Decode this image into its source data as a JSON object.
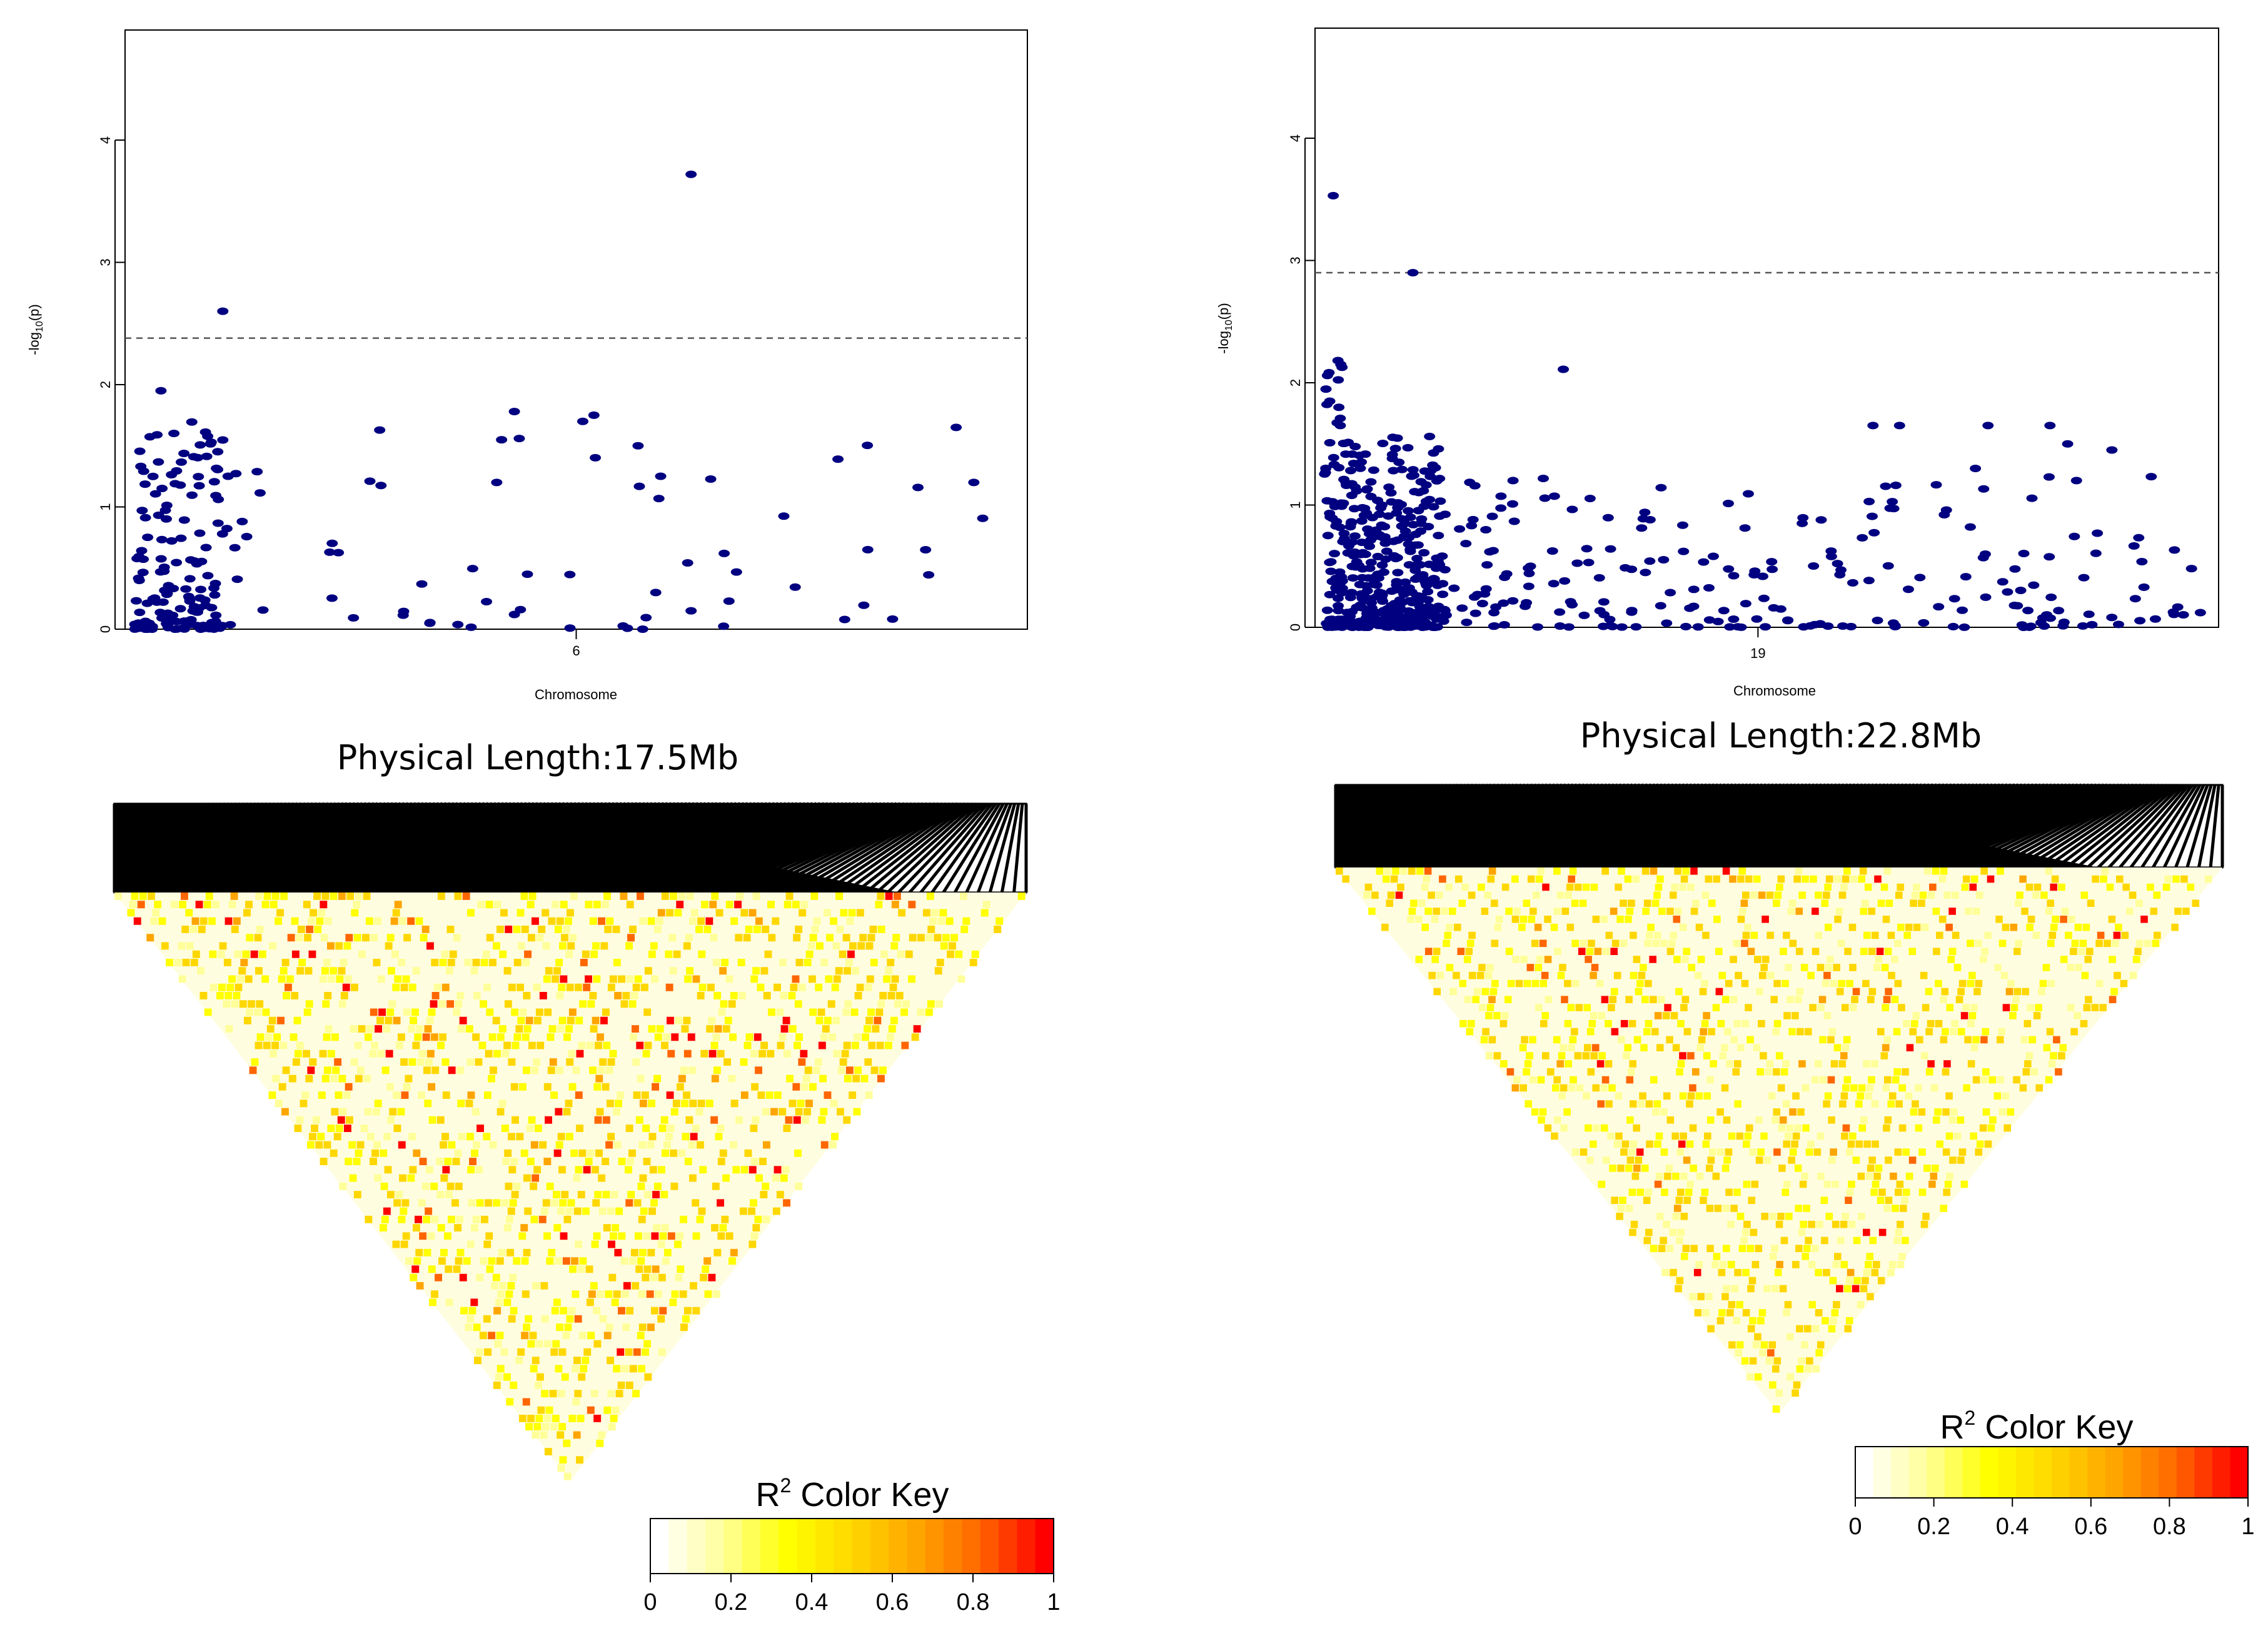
{
  "figure": {
    "background": "#ffffff",
    "point_color": "#000080",
    "heat_palette": [
      "#ffffff",
      "#ffff99",
      "#ffff00",
      "#ffd700",
      "#ffa500",
      "#ff6600",
      "#ff0000"
    ]
  },
  "chart_data": [
    {
      "type": "scatter",
      "id": "manhattan-chr6",
      "xlabel": "Chromosome",
      "ylabel": "-log10(p)",
      "ylabel_main": "-log",
      "ylabel_sub": "10",
      "ylabel_tail": "(p)",
      "x_tick_label": "6",
      "x_tick_pos": 0.5,
      "ylim": [
        0,
        4.9
      ],
      "yticks": [
        "0",
        "1",
        "2",
        "3",
        "4"
      ],
      "threshold": 2.38,
      "seed": 6,
      "x": [
        0.63,
        0.41,
        0.03,
        0.1,
        0.43,
        0.63,
        0.52,
        0.83,
        0.43,
        0.57,
        0.93,
        0.59,
        0.95
      ],
      "y": [
        3.72,
        1.2,
        1.95,
        2.6,
        1.78,
        0.15,
        1.75,
        0.65,
        0.12,
        1.5,
        1.65,
        0.3,
        1.2
      ]
    },
    {
      "type": "scatter",
      "id": "manhattan-chr19",
      "xlabel": "Chromosome",
      "ylabel": "-log10(p)",
      "ylabel_main": "-log",
      "ylabel_sub": "10",
      "ylabel_tail": "(p)",
      "x_tick_label": "19",
      "x_tick_pos": 0.49,
      "ylim": [
        0,
        4.9
      ],
      "yticks": [
        "0",
        "1",
        "2",
        "3",
        "4"
      ],
      "threshold": 2.9,
      "seed": 19,
      "x": [
        0.01,
        0.1,
        0.27,
        0.65,
        0.75,
        0.82,
        0.84,
        0.85,
        0.89,
        0.98,
        0.99,
        0.54,
        0.62,
        0.73
      ],
      "y": [
        3.53,
        2.9,
        2.11,
        1.65,
        1.65,
        1.65,
        1.5,
        1.2,
        1.45,
        0.48,
        0.12,
        0.85,
        1.65,
        0.82
      ]
    },
    {
      "type": "heatmap",
      "id": "ld-heatmap-left",
      "title": "Physical Length:17.5Mb",
      "physical_length_mb": 17.5,
      "color_key": {
        "title": "R",
        "title_sup": "2",
        "title_tail": " Color Key",
        "range": [
          0,
          1
        ],
        "ticks": [
          "0",
          "0.2",
          "0.4",
          "0.6",
          "0.8",
          "1"
        ]
      },
      "seed": 17,
      "density": 0.34,
      "hot_bias": 0.14
    },
    {
      "type": "heatmap",
      "id": "ld-heatmap-right",
      "title": "Physical Length:22.8Mb",
      "physical_length_mb": 22.8,
      "color_key": {
        "title": "R",
        "title_sup": "2",
        "title_tail": " Color Key",
        "range": [
          0,
          1
        ],
        "ticks": [
          "0",
          "0.2",
          "0.4",
          "0.6",
          "0.8",
          "1"
        ]
      },
      "seed": 23,
      "density": 0.3,
      "hot_bias": 0.1
    }
  ]
}
